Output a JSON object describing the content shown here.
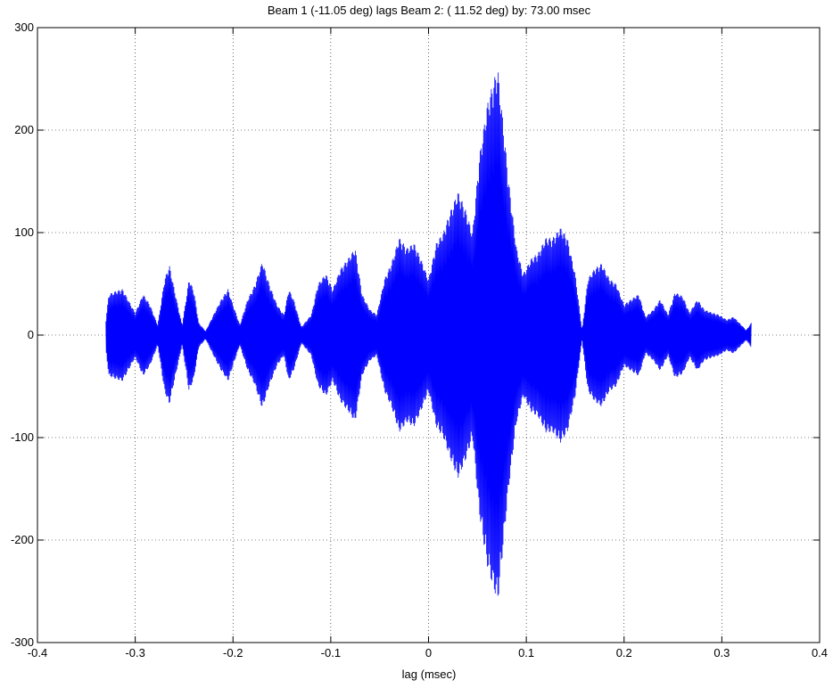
{
  "chart_data": {
    "type": "line",
    "title": "Beam 1 (-11.05 deg) lags Beam 2: ( 11.52 deg) by:  73.00 msec",
    "xlabel": "lag (msec)",
    "ylabel": "",
    "xlim": [
      -0.4,
      0.4
    ],
    "ylim": [
      -300,
      300
    ],
    "xticks": [
      -0.4,
      -0.3,
      -0.2,
      -0.1,
      0,
      0.1,
      0.2,
      0.3,
      0.4
    ],
    "xtick_labels": [
      "-0.4",
      "-0.3",
      "-0.2",
      "-0.1",
      "0",
      "0.1",
      "0.2",
      "0.3",
      "0.4"
    ],
    "yticks": [
      -300,
      -200,
      -100,
      0,
      100,
      200,
      300
    ],
    "ytick_labels": [
      "-300",
      "-200",
      "-100",
      "0",
      "100",
      "200",
      "300"
    ],
    "grid": true,
    "series_color": "#0000ff",
    "series": [
      {
        "description": "oscillating cross-correlation; envelope magnitude vs lag",
        "x": [
          -0.33,
          -0.327,
          -0.32,
          -0.313,
          -0.3,
          -0.292,
          -0.285,
          -0.277,
          -0.27,
          -0.265,
          -0.26,
          -0.252,
          -0.245,
          -0.24,
          -0.235,
          -0.228,
          -0.22,
          -0.212,
          -0.205,
          -0.2,
          -0.193,
          -0.185,
          -0.178,
          -0.17,
          -0.163,
          -0.155,
          -0.148,
          -0.143,
          -0.138,
          -0.13,
          -0.12,
          -0.113,
          -0.105,
          -0.098,
          -0.09,
          -0.082,
          -0.075,
          -0.068,
          -0.06,
          -0.053,
          -0.045,
          -0.038,
          -0.03,
          -0.022,
          -0.015,
          -0.008,
          0.0,
          0.008,
          0.015,
          0.022,
          0.03,
          0.037,
          0.045,
          0.052,
          0.06,
          0.067,
          0.071,
          0.075,
          0.082,
          0.09,
          0.097,
          0.105,
          0.112,
          0.12,
          0.127,
          0.135,
          0.142,
          0.15,
          0.157,
          0.163,
          0.17,
          0.177,
          0.185,
          0.192,
          0.2,
          0.207,
          0.215,
          0.222,
          0.23,
          0.237,
          0.245,
          0.252,
          0.26,
          0.267,
          0.275,
          0.282,
          0.29,
          0.297,
          0.305,
          0.312,
          0.32,
          0.325,
          0.33
        ],
        "envelope": [
          15,
          40,
          43,
          45,
          22,
          40,
          30,
          10,
          55,
          68,
          45,
          10,
          55,
          43,
          12,
          4,
          20,
          35,
          45,
          30,
          10,
          35,
          48,
          72,
          50,
          30,
          20,
          45,
          35,
          8,
          20,
          50,
          60,
          45,
          65,
          75,
          85,
          40,
          25,
          20,
          55,
          70,
          95,
          85,
          90,
          75,
          55,
          90,
          100,
          120,
          140,
          125,
          100,
          175,
          225,
          250,
          260,
          220,
          150,
          85,
          60,
          75,
          80,
          95,
          95,
          105,
          95,
          60,
          5,
          55,
          65,
          70,
          55,
          50,
          30,
          35,
          40,
          18,
          25,
          35,
          20,
          42,
          38,
          22,
          35,
          25,
          22,
          20,
          15,
          18,
          10,
          5,
          12
        ]
      }
    ]
  }
}
